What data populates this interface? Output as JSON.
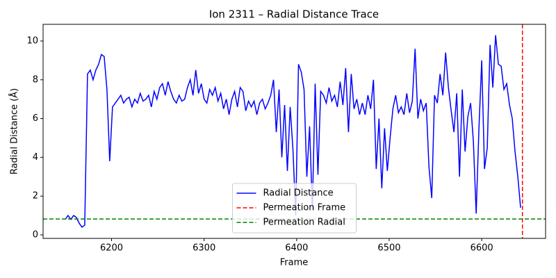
{
  "chart_data": {
    "type": "line",
    "title": "Ion 2311 – Radial Distance Trace",
    "x_label": "Frame",
    "y_label": "Radial Distance (Å)",
    "x": [
      6150,
      6153,
      6156,
      6159,
      6162,
      6165,
      6168,
      6171,
      6174,
      6177,
      6180,
      6183,
      6186,
      6189,
      6192,
      6195,
      6198,
      6201,
      6204,
      6207,
      6210,
      6213,
      6216,
      6219,
      6222,
      6225,
      6228,
      6231,
      6234,
      6237,
      6240,
      6243,
      6246,
      6249,
      6252,
      6255,
      6258,
      6261,
      6264,
      6267,
      6270,
      6273,
      6276,
      6279,
      6282,
      6285,
      6288,
      6291,
      6294,
      6297,
      6300,
      6303,
      6306,
      6309,
      6312,
      6315,
      6318,
      6321,
      6324,
      6327,
      6330,
      6333,
      6336,
      6339,
      6342,
      6345,
      6348,
      6351,
      6354,
      6357,
      6360,
      6363,
      6366,
      6369,
      6372,
      6375,
      6378,
      6381,
      6384,
      6387,
      6390,
      6393,
      6396,
      6399,
      6402,
      6405,
      6408,
      6411,
      6414,
      6417,
      6420,
      6423,
      6426,
      6429,
      6432,
      6435,
      6438,
      6441,
      6444,
      6447,
      6450,
      6453,
      6456,
      6459,
      6462,
      6465,
      6468,
      6471,
      6474,
      6477,
      6480,
      6483,
      6486,
      6489,
      6492,
      6495,
      6498,
      6501,
      6504,
      6507,
      6510,
      6513,
      6516,
      6519,
      6522,
      6525,
      6528,
      6531,
      6534,
      6537,
      6540,
      6543,
      6546,
      6549,
      6552,
      6555,
      6558,
      6561,
      6564,
      6567,
      6570,
      6573,
      6576,
      6579,
      6582,
      6585,
      6588,
      6591,
      6594,
      6597,
      6600,
      6603,
      6606,
      6609,
      6612,
      6615,
      6618,
      6621,
      6624,
      6627,
      6630,
      6633,
      6636,
      6639,
      6642
    ],
    "series": [
      {
        "name": "Radial Distance",
        "color": "#0000ff",
        "values": [
          0.8,
          1.0,
          0.8,
          1.0,
          0.9,
          0.6,
          0.4,
          0.5,
          8.3,
          8.5,
          8.0,
          8.5,
          8.8,
          9.3,
          9.2,
          7.5,
          3.8,
          6.6,
          6.8,
          7.0,
          7.2,
          6.8,
          7.0,
          7.1,
          6.6,
          7.0,
          6.8,
          7.3,
          6.9,
          7.0,
          7.2,
          6.6,
          7.4,
          7.0,
          7.6,
          7.8,
          7.2,
          7.9,
          7.4,
          7.0,
          6.8,
          7.2,
          6.9,
          7.0,
          7.6,
          8.0,
          7.2,
          8.5,
          7.3,
          7.8,
          7.0,
          6.8,
          7.5,
          7.2,
          7.6,
          6.9,
          7.3,
          6.5,
          7.0,
          6.2,
          7.0,
          7.4,
          6.6,
          7.6,
          7.4,
          6.4,
          6.9,
          6.6,
          6.9,
          6.2,
          6.8,
          7.0,
          6.5,
          6.8,
          7.2,
          8.0,
          5.3,
          7.5,
          4.0,
          6.7,
          3.3,
          6.6,
          4.4,
          1.0,
          8.8,
          8.4,
          7.5,
          3.0,
          5.6,
          1.3,
          7.8,
          3.1,
          7.4,
          7.2,
          6.8,
          7.6,
          6.9,
          7.2,
          6.6,
          7.9,
          6.7,
          8.6,
          5.3,
          8.3,
          6.5,
          7.0,
          6.2,
          6.8,
          6.2,
          7.2,
          6.5,
          8.0,
          3.4,
          6.0,
          2.4,
          5.5,
          3.3,
          5.0,
          6.5,
          7.2,
          6.3,
          6.6,
          6.2,
          7.3,
          6.3,
          6.9,
          9.6,
          6.0,
          7.0,
          6.4,
          6.8,
          3.5,
          1.9,
          7.2,
          6.8,
          8.3,
          7.2,
          9.4,
          7.6,
          6.4,
          5.3,
          7.3,
          3.0,
          7.5,
          4.3,
          6.1,
          6.8,
          4.8,
          1.1,
          5.5,
          9.0,
          3.4,
          4.5,
          9.8,
          7.6,
          10.3,
          8.8,
          8.7,
          7.5,
          7.8,
          6.7,
          6.0,
          4.3,
          3.0,
          1.4
        ]
      }
    ],
    "vlines": [
      {
        "name": "Permeation Frame",
        "color": "#ff0000",
        "x": 6644
      }
    ],
    "hlines": [
      {
        "name": "Permeation Radial",
        "color": "#008000",
        "y": 0.82
      }
    ],
    "xlim": [
      6126,
      6669
    ],
    "ylim": [
      -0.18,
      10.86
    ],
    "xticks": [
      6200,
      6300,
      6400,
      6500,
      6600
    ],
    "yticks": [
      0,
      2,
      4,
      6,
      8,
      10
    ],
    "grid": false,
    "legend": "lower center"
  }
}
